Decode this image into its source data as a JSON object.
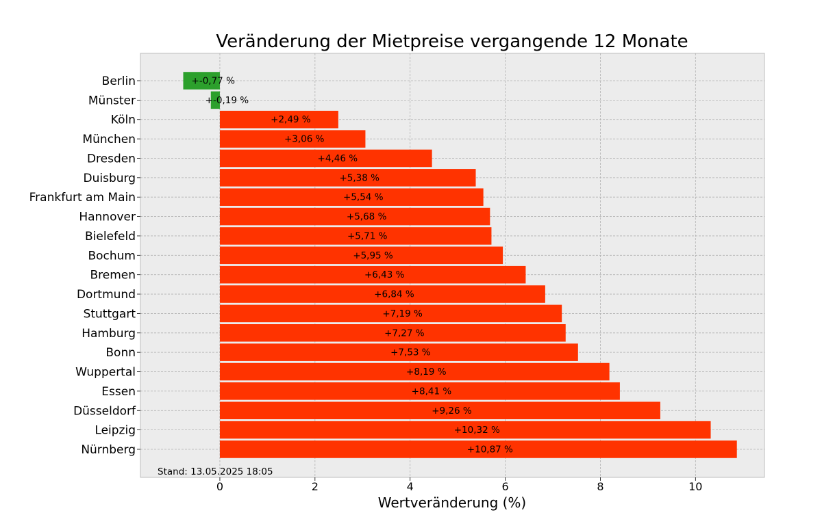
{
  "chart_data": {
    "type": "bar",
    "orientation": "horizontal",
    "title": "Veränderung der Mietpreise vergangende 12 Monate",
    "xlabel": "Wertveränderung (%)",
    "ylabel": "",
    "xlim": [
      -1.67,
      11.45
    ],
    "xticks": [
      0,
      2,
      4,
      6,
      8,
      10
    ],
    "xtick_labels": [
      "0",
      "2",
      "4",
      "6",
      "8",
      "10"
    ],
    "grid": true,
    "footnote": "Stand: 13.05.2025 18:05",
    "colors": {
      "positive": "#ff3300",
      "negative": "#2ca02c",
      "plot_background": "#ececec",
      "axes_edge": "#bcbcbc"
    },
    "categories": [
      "Berlin",
      "Münster",
      "Köln",
      "München",
      "Dresden",
      "Duisburg",
      "Frankfurt am Main",
      "Hannover",
      "Bielefeld",
      "Bochum",
      "Bremen",
      "Dortmund",
      "Stuttgart",
      "Hamburg",
      "Bonn",
      "Wuppertal",
      "Essen",
      "Düsseldorf",
      "Leipzig",
      "Nürnberg"
    ],
    "values": [
      -0.77,
      -0.19,
      2.49,
      3.06,
      4.46,
      5.38,
      5.54,
      5.68,
      5.71,
      5.95,
      6.43,
      6.84,
      7.19,
      7.27,
      7.53,
      8.19,
      8.41,
      9.26,
      10.32,
      10.87
    ],
    "data_labels": [
      "+-0,77 %",
      "+-0,19 %",
      "+2,49 %",
      "+3,06 %",
      "+4,46 %",
      "+5,38 %",
      "+5,54 %",
      "+5,68 %",
      "+5,71 %",
      "+5,95 %",
      "+6,43 %",
      "+6,84 %",
      "+7,19 %",
      "+7,27 %",
      "+7,53 %",
      "+8,19 %",
      "+8,41 %",
      "+9,26 %",
      "+10,32 %",
      "+10,87 %"
    ]
  }
}
